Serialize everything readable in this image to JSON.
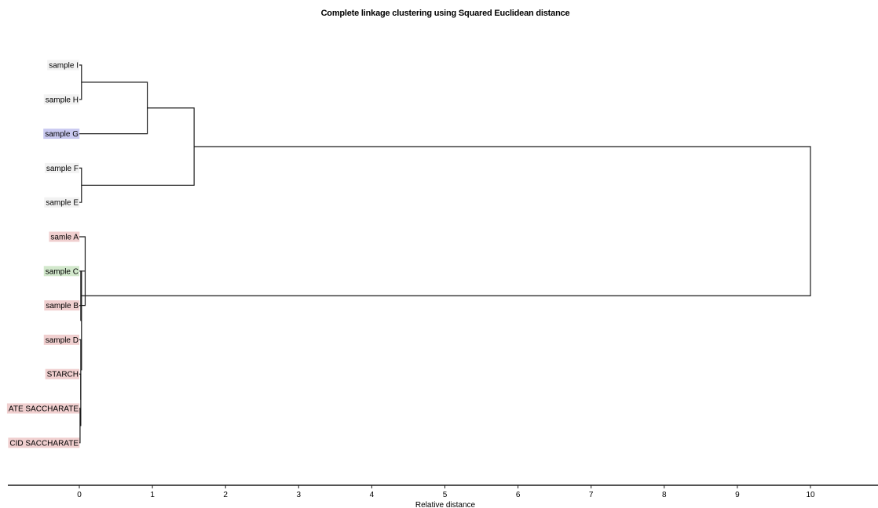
{
  "chart_data": {
    "type": "dendrogram",
    "title": "Complete linkage clustering using Squared Euclidean distance",
    "xlabel": "Relative distance",
    "xlim": [
      0,
      10
    ],
    "ticks": [
      "0",
      "1",
      "2",
      "3",
      "4",
      "5",
      "6",
      "7",
      "8",
      "9",
      "10"
    ],
    "leaves": [
      {
        "id": "I",
        "label": "sample I",
        "color": "#f2f2f2"
      },
      {
        "id": "H",
        "label": "sample H",
        "color": "#f2f2f2"
      },
      {
        "id": "G",
        "label": "sample G",
        "color": "#c9c9f0"
      },
      {
        "id": "F",
        "label": "sample F",
        "color": "#f2f2f2"
      },
      {
        "id": "E",
        "label": "sample E",
        "color": "#f2f2f2"
      },
      {
        "id": "A",
        "label": "samle A",
        "color": "#f0cfcf"
      },
      {
        "id": "C",
        "label": "sample C",
        "color": "#d2e8cc"
      },
      {
        "id": "B",
        "label": "sample B",
        "color": "#f0cfcf"
      },
      {
        "id": "D",
        "label": "sample D",
        "color": "#f0cfcf"
      },
      {
        "id": "ST",
        "label": "STARCH",
        "color": "#f0cfcf"
      },
      {
        "id": "ATS",
        "label": "ATE SACCHARATE",
        "color": "#f0cfcf"
      },
      {
        "id": "CDS",
        "label": "CID SACCHARATE",
        "color": "#f0cfcf"
      }
    ],
    "merges": [
      {
        "id": "m1",
        "children": [
          "I",
          "H"
        ],
        "height": 0.03
      },
      {
        "id": "m2",
        "children": [
          "m1",
          "G"
        ],
        "height": 0.93
      },
      {
        "id": "m3",
        "children": [
          "F",
          "E"
        ],
        "height": 0.03
      },
      {
        "id": "m4",
        "children": [
          "m2",
          "m3"
        ],
        "height": 1.57
      },
      {
        "id": "m5",
        "children": [
          "ATS",
          "CDS"
        ],
        "height": 0.01
      },
      {
        "id": "m6",
        "children": [
          "ST",
          "m5"
        ],
        "height": 0.02
      },
      {
        "id": "m7",
        "children": [
          "D",
          "m6"
        ],
        "height": 0.02
      },
      {
        "id": "m8",
        "children": [
          "C",
          "m7"
        ],
        "height": 0.03
      },
      {
        "id": "m9",
        "children": [
          "A",
          "B"
        ],
        "height": 0.08
      },
      {
        "id": "m10",
        "children": [
          "m9",
          "m8"
        ],
        "height": 0.02
      },
      {
        "id": "m11",
        "children": [
          "m4",
          "m10"
        ],
        "height": 10.0
      }
    ]
  }
}
